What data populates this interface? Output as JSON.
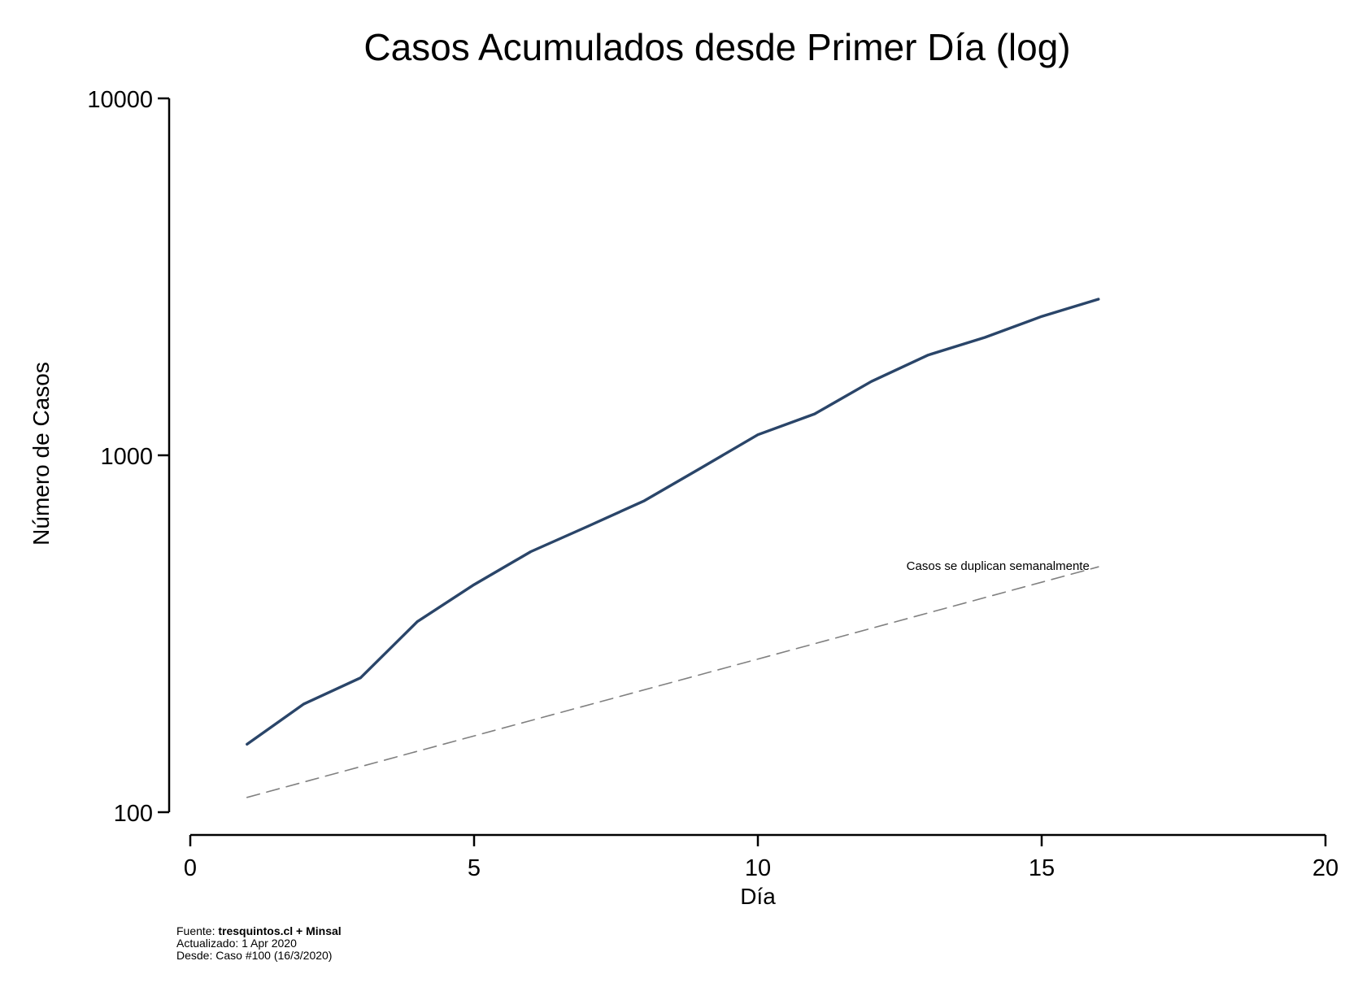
{
  "chart_data": {
    "type": "line",
    "title": "Casos Acumulados desde Primer Día (log)",
    "xlabel": "Día",
    "ylabel": "Número de Casos",
    "x_ticks": [
      0,
      5,
      10,
      15,
      20
    ],
    "y_ticks": [
      100,
      1000,
      10000
    ],
    "xlim": [
      0,
      20
    ],
    "ylim": [
      100,
      10000
    ],
    "y_scale": "log",
    "grid": false,
    "series": [
      {
        "x": [
          1,
          2,
          3,
          4,
          5,
          6,
          7,
          8,
          9,
          10,
          11,
          12,
          13,
          14,
          15,
          16
        ],
        "values": [
          155,
          201,
          238,
          342,
          434,
          537,
          632,
          746,
          922,
          1142,
          1306,
          1610,
          1909,
          2139,
          2449,
          2738
        ],
        "color": "#2a4569",
        "style": "solid"
      },
      {
        "x": [
          1,
          16
        ],
        "values": [
          110,
          487
        ],
        "color": "#808080",
        "style": "dashed"
      }
    ],
    "annotations": [
      {
        "text": "Casos se duplican semanalmente",
        "x": 16,
        "y": 487
      }
    ]
  },
  "footer": {
    "source_prefix": "Fuente: ",
    "source_bold": "tresquintos.cl + Minsal",
    "updated": "Actualizado: 1 Apr 2020",
    "since": "Desde: Caso #100 (16/3/2020)"
  }
}
